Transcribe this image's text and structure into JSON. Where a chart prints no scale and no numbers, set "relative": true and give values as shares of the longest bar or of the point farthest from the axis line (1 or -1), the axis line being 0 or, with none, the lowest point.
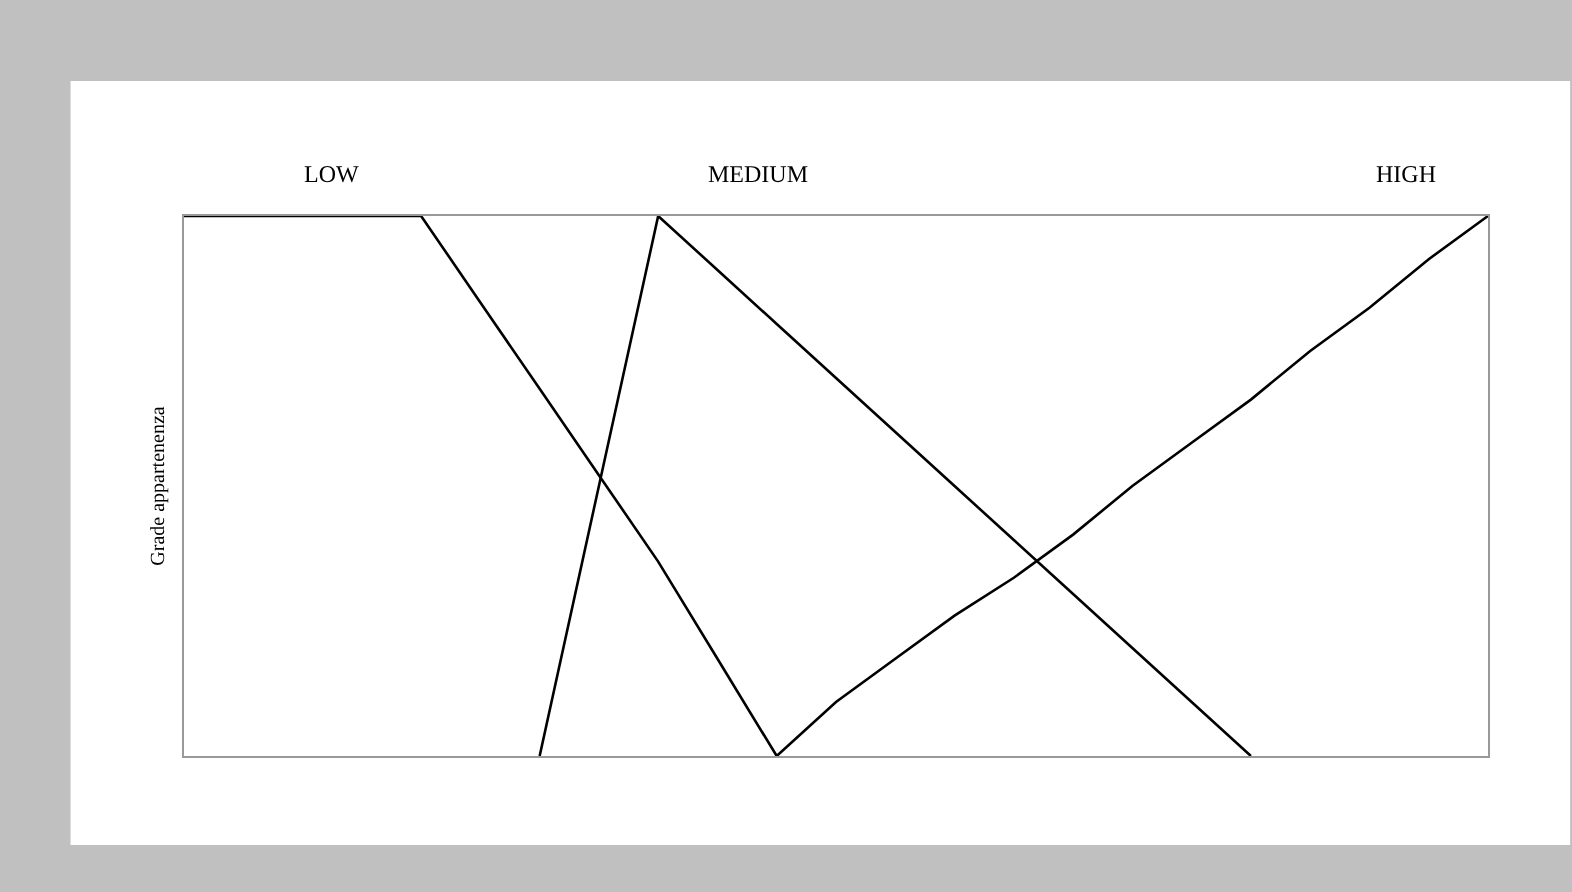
{
  "chart_data": {
    "type": "line",
    "ylabel": "Grade appartenenza",
    "relative": true,
    "categories": [
      null,
      null,
      null,
      null,
      null,
      null,
      null,
      null,
      null,
      null,
      null,
      null,
      null,
      null,
      null,
      null,
      null,
      null,
      null,
      null,
      null,
      null,
      null
    ],
    "series": [
      {
        "name": "LOW",
        "color": "#000000",
        "values": [
          1,
          1,
          1,
          1,
          1,
          0.84,
          0.68,
          0.52,
          0.36,
          0.18,
          0,
          null,
          null,
          null,
          null,
          null,
          null,
          null,
          null,
          null,
          null,
          null,
          null
        ]
      },
      {
        "name": "MEDIUM",
        "color": "#000000",
        "values": [
          null,
          null,
          null,
          null,
          null,
          null,
          0,
          0.5,
          1,
          0.9,
          0.8,
          0.7,
          0.6,
          0.5,
          0.4,
          0.3,
          0.2,
          0.1,
          0,
          null,
          null,
          null,
          null
        ]
      },
      {
        "name": "HIGH",
        "color": "#000000",
        "values": [
          null,
          null,
          null,
          null,
          null,
          null,
          null,
          null,
          null,
          null,
          0,
          0.1,
          0.18,
          0.26,
          0.33,
          0.41,
          0.5,
          0.58,
          0.66,
          0.75,
          0.83,
          0.92,
          1
        ]
      }
    ],
    "legend": false,
    "marker": "none",
    "line_style": "solid"
  }
}
